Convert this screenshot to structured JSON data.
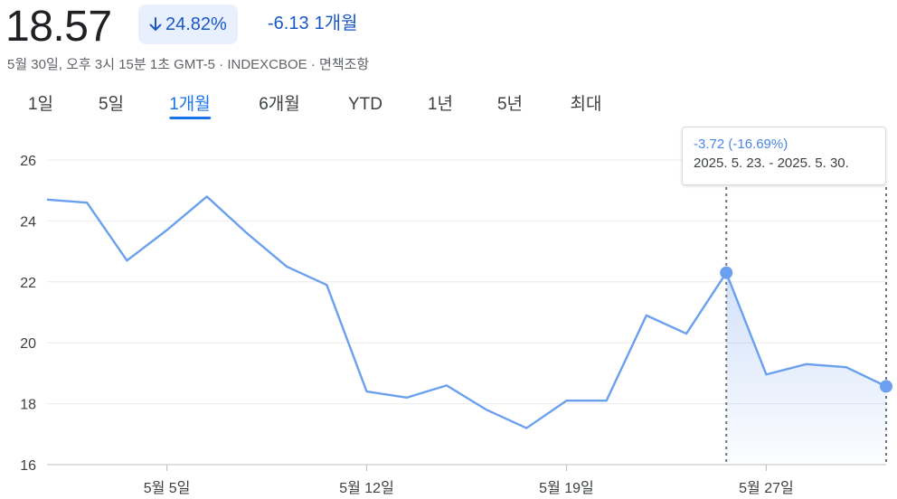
{
  "header": {
    "price": "18.57",
    "percent_change": "24.82%",
    "abs_change": "-6.13",
    "period_label": "1개월",
    "subtitle": "5월 30일, 오후 3시 15분 1초 GMT-5 · INDEXCBOE · 면책조항"
  },
  "tabs": [
    {
      "label": "1일",
      "active": false
    },
    {
      "label": "5일",
      "active": false
    },
    {
      "label": "1개월",
      "active": true
    },
    {
      "label": "6개월",
      "active": false
    },
    {
      "label": "YTD",
      "active": false
    },
    {
      "label": "1년",
      "active": false
    },
    {
      "label": "5년",
      "active": false
    },
    {
      "label": "최대",
      "active": false
    }
  ],
  "tooltip": {
    "change": "-3.72 (-16.69%)",
    "range": "2025. 5. 23. - 2025. 5. 30."
  },
  "colors": {
    "line": "#6aa0ee",
    "accent_text": "#1a57c6",
    "badge_bg": "#e8f0fe",
    "fill": "#4a86e8"
  },
  "chart_data": {
    "type": "line",
    "title": "",
    "xlabel": "",
    "ylabel": "",
    "ylim": [
      16,
      26
    ],
    "yticks": [
      16,
      18,
      20,
      22,
      24,
      26
    ],
    "xticks": [
      {
        "label": "5월 5일",
        "date": "2025-05-05"
      },
      {
        "label": "5월 12일",
        "date": "2025-05-12"
      },
      {
        "label": "5월 19일",
        "date": "2025-05-19"
      },
      {
        "label": "5월 27일",
        "date": "2025-05-27"
      }
    ],
    "grid": true,
    "series": [
      {
        "x": [
          "2025-04-30",
          "2025-05-01",
          "2025-05-02",
          "2025-05-05",
          "2025-05-06",
          "2025-05-07",
          "2025-05-08",
          "2025-05-09",
          "2025-05-12",
          "2025-05-13",
          "2025-05-14",
          "2025-05-15",
          "2025-05-16",
          "2025-05-19",
          "2025-05-20",
          "2025-05-21",
          "2025-05-22",
          "2025-05-23",
          "2025-05-27",
          "2025-05-28",
          "2025-05-29",
          "2025-05-30"
        ],
        "values": [
          24.7,
          24.6,
          22.7,
          23.7,
          24.8,
          23.6,
          22.5,
          21.9,
          18.4,
          18.2,
          18.6,
          17.8,
          17.2,
          18.1,
          18.1,
          20.9,
          20.3,
          22.3,
          18.96,
          19.3,
          19.2,
          18.57
        ]
      }
    ],
    "highlight": {
      "from": "2025-05-23",
      "to": "2025-05-30"
    }
  }
}
